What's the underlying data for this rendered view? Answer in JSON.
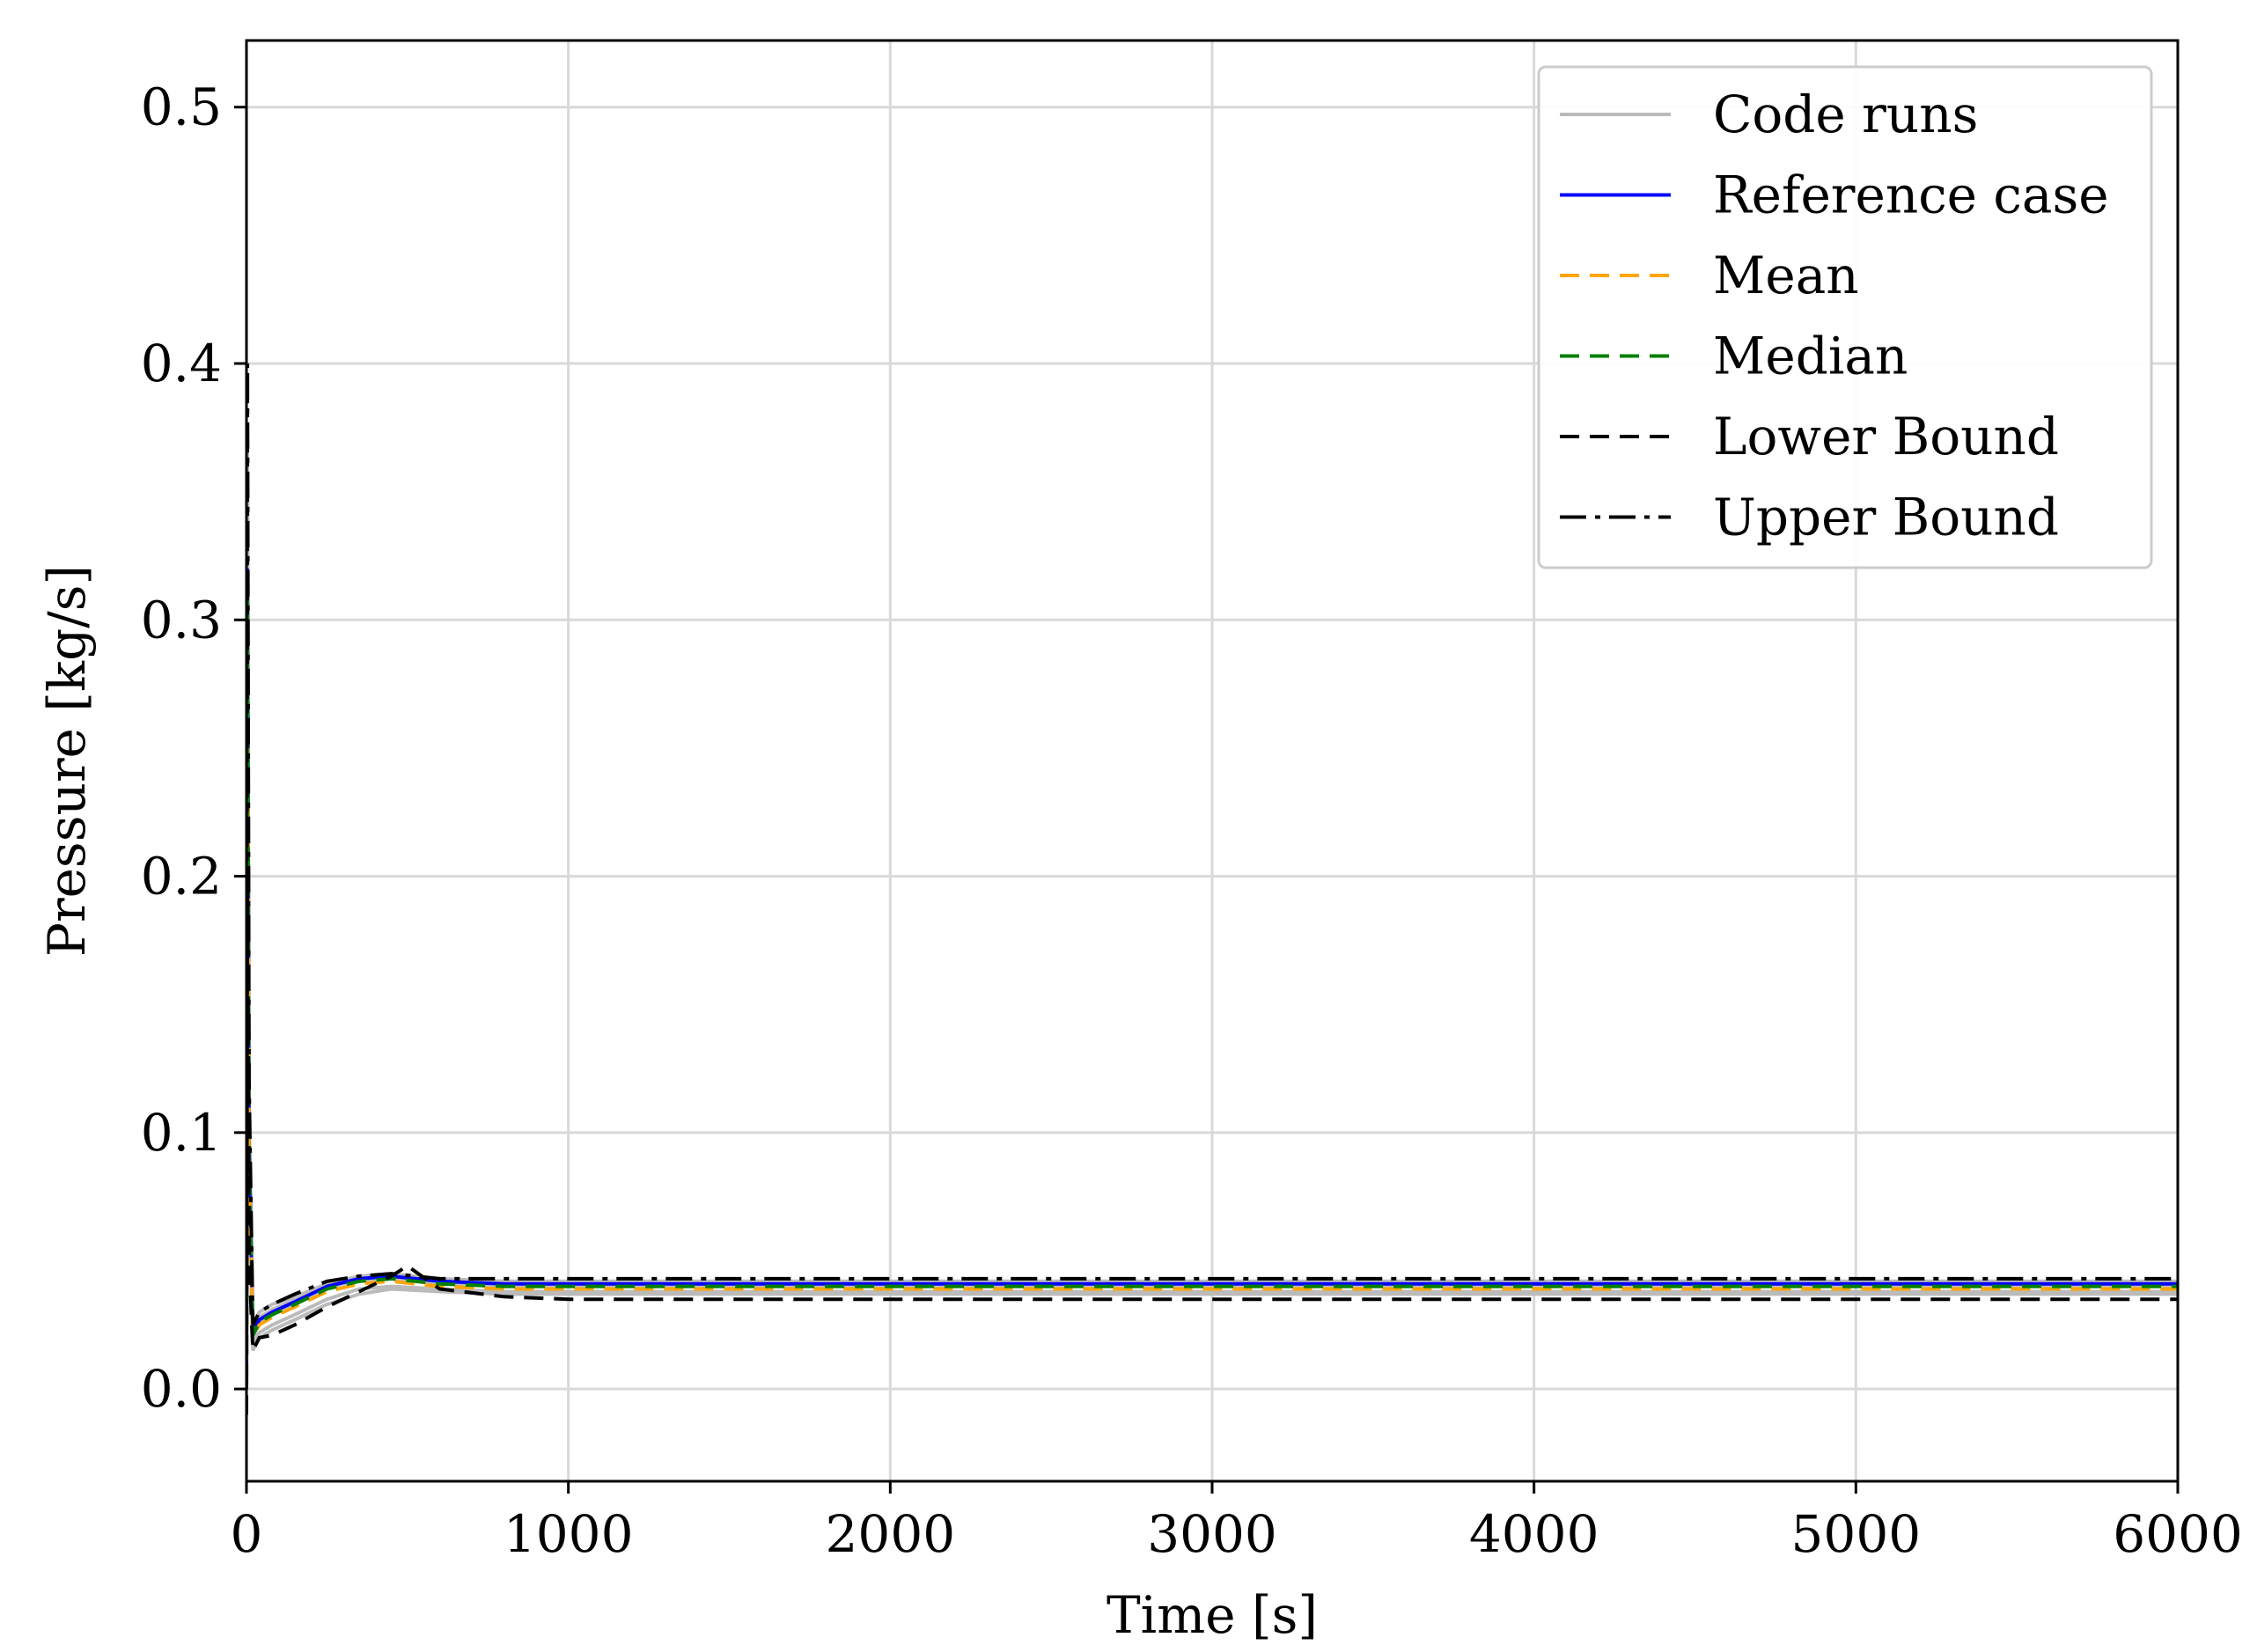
{
  "chart_data": {
    "type": "line",
    "title": "",
    "xlabel": "Time [s]",
    "ylabel": "Pressure [kg/s]",
    "xlim": [
      0,
      6000
    ],
    "ylim": [
      -0.036,
      0.526
    ],
    "grid": true,
    "legend_position": "top-right",
    "x_ticks": [
      {
        "value": 0,
        "label": "0"
      },
      {
        "value": 1000,
        "label": "1000"
      },
      {
        "value": 2000,
        "label": "2000"
      },
      {
        "value": 3000,
        "label": "3000"
      },
      {
        "value": 4000,
        "label": "4000"
      },
      {
        "value": 5000,
        "label": "5000"
      },
      {
        "value": 6000,
        "label": "6000"
      }
    ],
    "y_ticks": [
      {
        "value": 0.0,
        "label": "0.0"
      },
      {
        "value": 0.1,
        "label": "0.1"
      },
      {
        "value": 0.2,
        "label": "0.2"
      },
      {
        "value": 0.3,
        "label": "0.3"
      },
      {
        "value": 0.4,
        "label": "0.4"
      },
      {
        "value": 0.5,
        "label": "0.5"
      }
    ],
    "code_runs": [
      {
        "x": [
          0,
          3,
          8,
          20,
          40,
          80,
          150,
          250,
          350,
          450,
          600,
          800,
          1200,
          6000
        ],
        "y": [
          0.0,
          0.37,
          0.1,
          0.02,
          0.026,
          0.029,
          0.033,
          0.039,
          0.043,
          0.044,
          0.042,
          0.041,
          0.041,
          0.041
        ]
      },
      {
        "x": [
          0,
          3,
          8,
          20,
          40,
          80,
          150,
          250,
          350,
          450,
          600,
          800,
          1200,
          6000
        ],
        "y": [
          0.0,
          0.33,
          0.09,
          0.018,
          0.022,
          0.025,
          0.029,
          0.035,
          0.039,
          0.04,
          0.039,
          0.038,
          0.038,
          0.038
        ]
      },
      {
        "x": [
          0,
          3,
          8,
          20,
          40,
          80,
          150,
          250,
          350,
          450,
          600,
          800,
          1200,
          6000
        ],
        "y": [
          0.0,
          0.3,
          0.08,
          0.022,
          0.028,
          0.031,
          0.035,
          0.04,
          0.042,
          0.043,
          0.041,
          0.04,
          0.04,
          0.04
        ]
      },
      {
        "x": [
          0,
          3,
          8,
          20,
          40,
          80,
          150,
          250,
          350,
          450,
          600,
          800,
          1200,
          6000
        ],
        "y": [
          0.0,
          0.28,
          0.07,
          0.015,
          0.02,
          0.023,
          0.027,
          0.033,
          0.037,
          0.039,
          0.038,
          0.037,
          0.037,
          0.037
        ]
      },
      {
        "x": [
          0,
          3,
          8,
          20,
          40,
          80,
          150,
          250,
          350,
          450,
          600,
          800,
          1200,
          6000
        ],
        "y": [
          0.0,
          0.35,
          0.09,
          0.024,
          0.03,
          0.033,
          0.036,
          0.041,
          0.044,
          0.045,
          0.043,
          0.042,
          0.042,
          0.042
        ]
      }
    ],
    "series": [
      {
        "name": "Reference case",
        "color": "#0000ff",
        "dash": "solid",
        "x": [
          0,
          3,
          8,
          20,
          40,
          80,
          150,
          250,
          350,
          450,
          600,
          800,
          1200,
          6000
        ],
        "y": [
          0.0,
          0.32,
          0.1,
          0.022,
          0.027,
          0.03,
          0.034,
          0.04,
          0.043,
          0.044,
          0.042,
          0.041,
          0.041,
          0.041
        ]
      },
      {
        "name": "Mean",
        "color": "#ffa500",
        "dash": "dashed",
        "x": [
          0,
          3,
          8,
          20,
          40,
          80,
          150,
          250,
          350,
          450,
          600,
          800,
          1200,
          6000
        ],
        "y": [
          0.0,
          0.3,
          0.09,
          0.02,
          0.025,
          0.028,
          0.032,
          0.038,
          0.041,
          0.042,
          0.04,
          0.039,
          0.039,
          0.039
        ]
      },
      {
        "name": "Median",
        "color": "#008000",
        "dash": "dashed",
        "x": [
          0,
          3,
          8,
          20,
          40,
          80,
          150,
          250,
          350,
          450,
          600,
          800,
          1200,
          6000
        ],
        "y": [
          0.0,
          0.31,
          0.09,
          0.021,
          0.026,
          0.029,
          0.033,
          0.039,
          0.042,
          0.043,
          0.041,
          0.04,
          0.04,
          0.04
        ]
      },
      {
        "name": "Lower Bound",
        "color": "#000000",
        "dash": "dashed",
        "x": [
          0,
          3,
          8,
          20,
          40,
          80,
          150,
          250,
          350,
          450,
          500,
          600,
          800,
          1000,
          6000
        ],
        "y": [
          -0.01,
          0.2,
          0.05,
          0.015,
          0.02,
          0.021,
          0.025,
          0.032,
          0.038,
          0.044,
          0.048,
          0.039,
          0.036,
          0.035,
          0.035
        ]
      },
      {
        "name": "Upper Bound",
        "color": "#000000",
        "dash": "dashdot",
        "x": [
          0,
          3,
          8,
          20,
          40,
          80,
          150,
          250,
          350,
          450,
          600,
          800,
          1200,
          6000
        ],
        "y": [
          0.0,
          0.4,
          0.12,
          0.025,
          0.03,
          0.033,
          0.037,
          0.042,
          0.044,
          0.045,
          0.043,
          0.043,
          0.043,
          0.043
        ]
      }
    ],
    "legend": [
      {
        "name": "Code runs",
        "color": "#bbbbbb",
        "dash": "solid"
      },
      {
        "name": "Reference case",
        "color": "#0000ff",
        "dash": "solid"
      },
      {
        "name": "Mean",
        "color": "#ffa500",
        "dash": "dashed"
      },
      {
        "name": "Median",
        "color": "#008000",
        "dash": "dashed"
      },
      {
        "name": "Lower Bound",
        "color": "#000000",
        "dash": "dashed"
      },
      {
        "name": "Upper Bound",
        "color": "#000000",
        "dash": "dashdot"
      }
    ]
  }
}
